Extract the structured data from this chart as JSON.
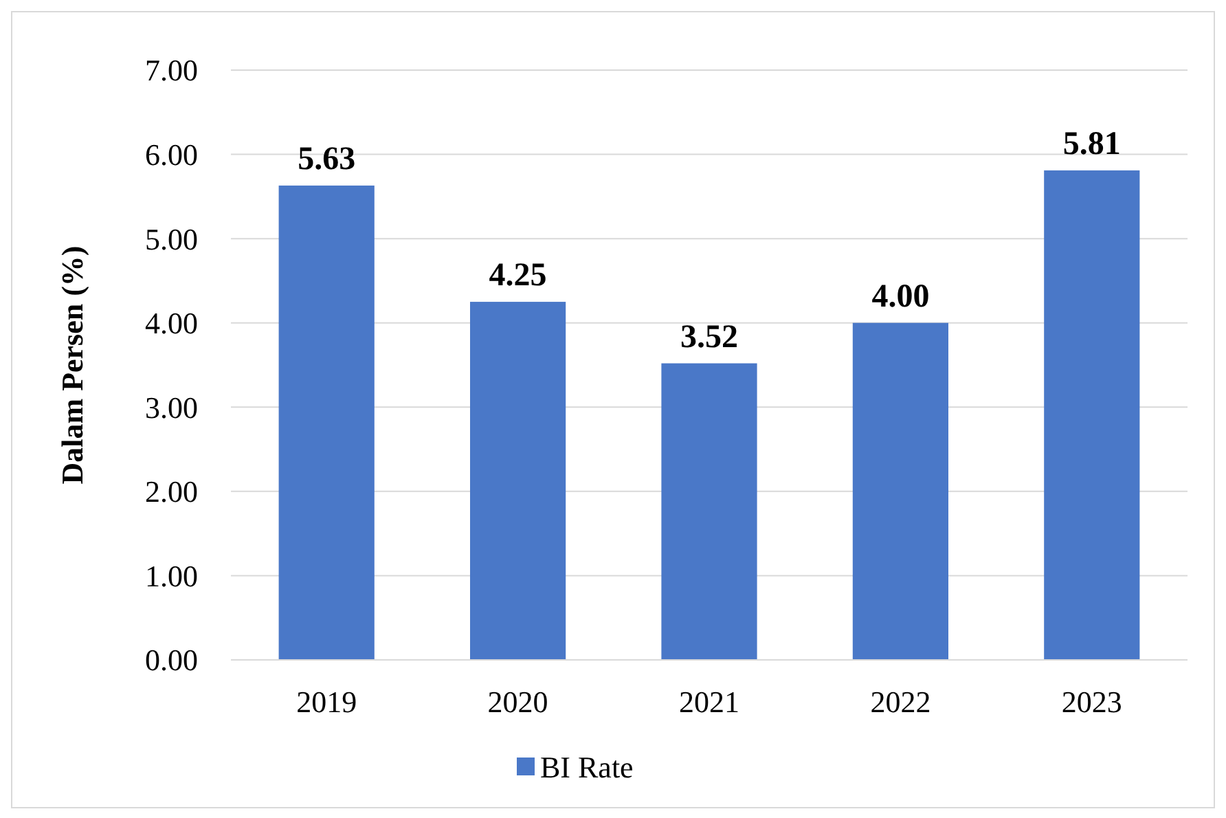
{
  "chart_data": {
    "type": "bar",
    "ylabel": "Dalam Persen (%)",
    "categories": [
      "2019",
      "2020",
      "2021",
      "2022",
      "2023"
    ],
    "series": [
      {
        "name": "BI Rate",
        "color": "#4a78c8",
        "values": [
          5.63,
          4.25,
          3.52,
          4.0,
          5.81
        ]
      }
    ],
    "ylim": [
      0,
      7
    ],
    "yticks": [
      {
        "value": 0,
        "label": "0.00"
      },
      {
        "value": 1,
        "label": "1.00"
      },
      {
        "value": 2,
        "label": "2.00"
      },
      {
        "value": 3,
        "label": "3.00"
      },
      {
        "value": 4,
        "label": "4.00"
      },
      {
        "value": 5,
        "label": "5.00"
      },
      {
        "value": 6,
        "label": "6.00"
      },
      {
        "value": 7,
        "label": "7.00"
      }
    ],
    "value_labels": [
      "5.63",
      "4.25",
      "3.52",
      "4.00",
      "5.81"
    ],
    "grid": "y",
    "legend": "bottom"
  }
}
